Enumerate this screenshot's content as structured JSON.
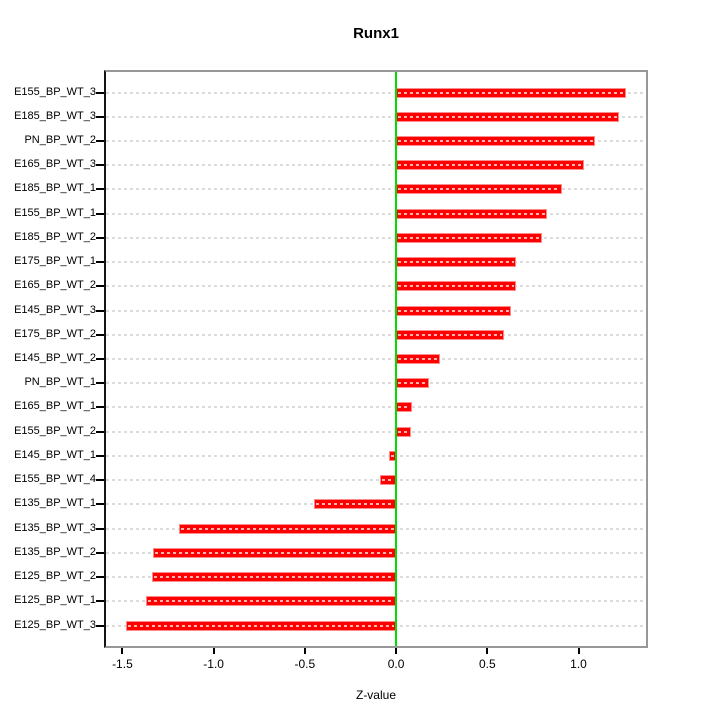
{
  "chart_data": {
    "type": "bar",
    "orientation": "horizontal",
    "title": "Runx1",
    "xlabel": "Z-value",
    "categories": [
      "E155_BP_WT_3",
      "E185_BP_WT_3",
      "PN_BP_WT_2",
      "E165_BP_WT_3",
      "E185_BP_WT_1",
      "E155_BP_WT_1",
      "E185_BP_WT_2",
      "E175_BP_WT_1",
      "E165_BP_WT_2",
      "E145_BP_WT_3",
      "E175_BP_WT_2",
      "E145_BP_WT_2",
      "PN_BP_WT_1",
      "E165_BP_WT_1",
      "E155_BP_WT_2",
      "E145_BP_WT_1",
      "E155_BP_WT_4",
      "E135_BP_WT_1",
      "E135_BP_WT_3",
      "E135_BP_WT_2",
      "E125_BP_WT_2",
      "E125_BP_WT_1",
      "E125_BP_WT_3"
    ],
    "values": [
      1.26,
      1.22,
      1.09,
      1.03,
      0.91,
      0.83,
      0.8,
      0.66,
      0.66,
      0.63,
      0.59,
      0.24,
      0.18,
      0.09,
      0.08,
      -0.04,
      -0.09,
      -0.45,
      -1.19,
      -1.33,
      -1.34,
      -1.37,
      -1.48
    ],
    "xlim": [
      -1.59,
      1.37
    ],
    "xticks": [
      -1.5,
      -1.0,
      -0.5,
      0.0,
      0.5,
      1.0
    ],
    "xtick_labels": [
      "-1.5",
      "-1.0",
      "-0.5",
      "0.0",
      "0.5",
      "1.0"
    ],
    "grid": "horizontal-dotted",
    "legend": "none",
    "colors": {
      "bar_fill": "#ff0000",
      "bar_edge": "#ff8a8a",
      "zero_line": "#00dd00",
      "grid_line": "#dcdcdc",
      "box_border": "#979797",
      "axis_line": "#141414",
      "background": "#ffffff"
    }
  }
}
